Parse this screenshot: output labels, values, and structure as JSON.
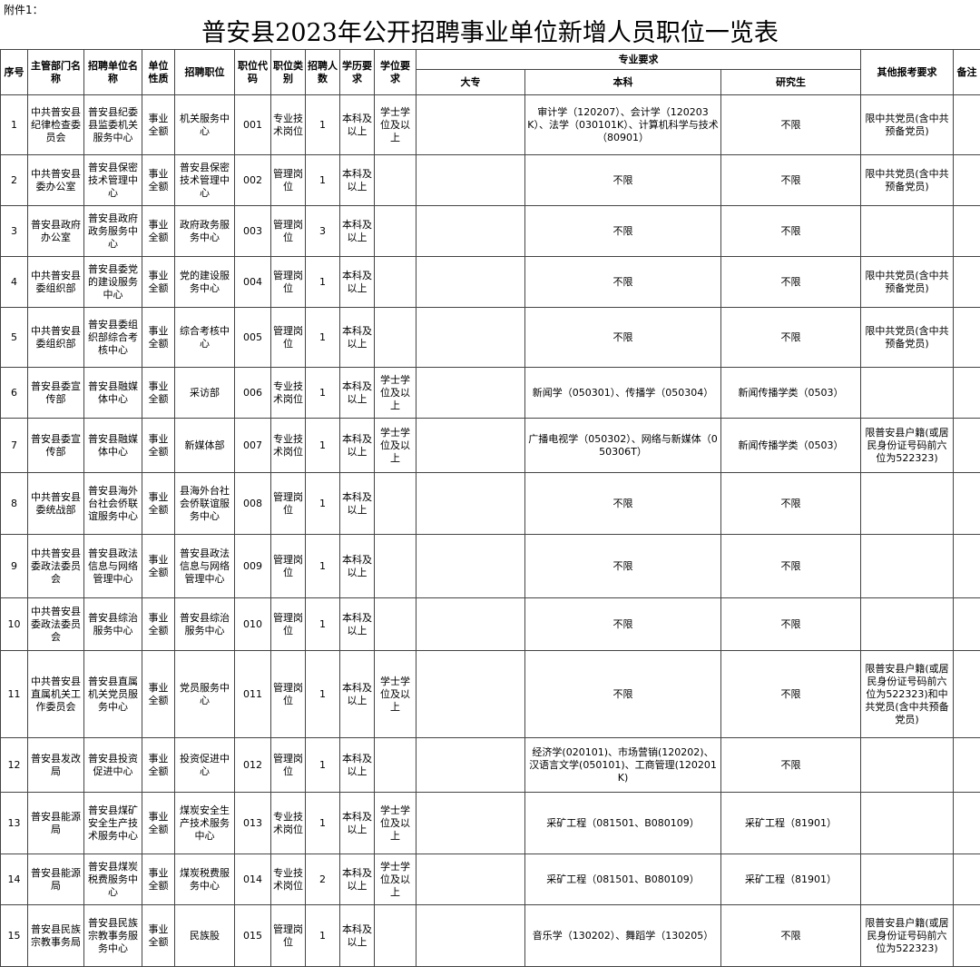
{
  "header": {
    "attachment": "附件1：",
    "title": "普安县2023年公开招聘事业单位新增人员职位一览表"
  },
  "table": {
    "headers": [
      "序号",
      "主管部门名称",
      "招聘单位名称",
      "单位性质",
      "招聘职位",
      "职位代码",
      "职位类别",
      "招聘人数",
      "学历要求",
      "学位要求",
      "专业要求",
      "其他报考要求",
      "备注"
    ],
    "subheaders": [
      "大专",
      "本科",
      "研究生"
    ],
    "rows": [
      [
        1,
        "中共普安县纪律检查委员会",
        "普安县纪委县监委机关服务中心",
        "事业全额",
        "机关服务中心",
        "001",
        "专业技术岗位",
        1,
        "本科及以上",
        "学士学位及以上",
        null,
        "审计学（120207）、会计学（120203K）、法学（030101K）、计算机科学与技术（80901）",
        "不限",
        "限中共党员(含中共预备党员)",
        null
      ],
      [
        2,
        "中共普安县委办公室",
        "普安县保密技术管理中心",
        "事业全额",
        "普安县保密技术管理中心",
        "002",
        "管理岗位",
        1,
        "本科及以上",
        null,
        null,
        "不限",
        "不限",
        "限中共党员(含中共预备党员)",
        null
      ],
      [
        3,
        "普安县政府办公室",
        "普安县政府政务服务中心",
        "事业全额",
        "政府政务服务中心",
        "003",
        "管理岗位",
        3,
        "本科及以上",
        null,
        null,
        "不限",
        "不限",
        null,
        null
      ],
      [
        4,
        "中共普安县委组织部",
        "普安县委党的建设服务中心",
        "事业全额",
        "党的建设服务中心",
        "004",
        "管理岗位",
        1,
        "本科及以上",
        null,
        null,
        "不限",
        "不限",
        "限中共党员(含中共预备党员)",
        null
      ],
      [
        5,
        "中共普安县委组织部",
        "普安县委组织部综合考核中心",
        "事业全额",
        "综合考核中心",
        "005",
        "管理岗位",
        1,
        "本科及以上",
        null,
        null,
        "不限",
        "不限",
        "限中共党员(含中共预备党员)",
        null
      ],
      [
        6,
        "普安县委宣传部",
        "普安县融媒体中心",
        "事业全额",
        "采访部",
        "006",
        "专业技术岗位",
        1,
        "本科及以上",
        "学士学位及以上",
        null,
        "新闻学（050301）、传播学（050304）",
        "新闻传播学类（0503）",
        null,
        null
      ],
      [
        7,
        "普安县委宣传部",
        "普安县融媒体中心",
        "事业全额",
        "新媒体部",
        "007",
        "专业技术岗位",
        1,
        "本科及以上",
        "学士学位及以上",
        null,
        "广播电视学（050302）、网络与新媒体（050306T）",
        "新闻传播学类（0503）",
        "限普安县户籍(或居民身份证号码前六位为522323)",
        null
      ],
      [
        8,
        "中共普安县委统战部",
        "普安县海外台社会侨联谊服务中心",
        "事业全额",
        "县海外台社会侨联谊服务中心",
        "008",
        "管理岗位",
        1,
        "本科及以上",
        null,
        null,
        "不限",
        "不限",
        null,
        null
      ],
      [
        9,
        "中共普安县委政法委员会",
        "普安县政法信息与网络管理中心",
        "事业全额",
        "普安县政法信息与网络管理中心",
        "009",
        "管理岗位",
        1,
        "本科及以上",
        null,
        null,
        "不限",
        "不限",
        null,
        null
      ],
      [
        10,
        "中共普安县委政法委员会",
        "普安县综治服务中心",
        "事业全额",
        "普安县综治服务中心",
        "010",
        "管理岗位",
        1,
        "本科及以上",
        null,
        null,
        "不限",
        "不限",
        null,
        null
      ],
      [
        11,
        "中共普安县直属机关工作委员会",
        "普安县直属机关党员服务中心",
        "事业全额",
        "党员服务中心",
        "011",
        "管理岗位",
        1,
        "本科及以上",
        "学士学位及以上",
        null,
        "不限",
        "不限",
        "限普安县户籍(或居民身份证号码前六位为522323)和中共党员(含中共预备党员)",
        null
      ],
      [
        12,
        "普安县发改局",
        "普安县投资促进中心",
        "事业全额",
        "投资促进中心",
        "012",
        "管理岗位",
        1,
        "本科及以上",
        null,
        null,
        "经济学(020101)、市场营销(120202)、汉语言文学(050101)、工商管理(120201K)",
        "不限",
        null,
        null
      ],
      [
        13,
        "普安县能源局",
        "普安县煤矿安全生产技术服务中心",
        "事业全额",
        "煤炭安全生产技术服务中心",
        "013",
        "专业技术岗位",
        1,
        "本科及以上",
        "学士学位及以上",
        null,
        "采矿工程（081501、B080109）",
        "采矿工程（81901）",
        null,
        null
      ],
      [
        14,
        "普安县能源局",
        "普安县煤炭税费服务中心",
        "事业全额",
        "煤炭税费服务中心",
        "014",
        "专业技术岗位",
        2,
        "本科及以上",
        "学士学位及以上",
        null,
        "采矿工程（081501、B080109）",
        "采矿工程（81901）",
        null,
        null
      ],
      [
        15,
        "普安县民族宗教事务局",
        "普安县民族宗教事务服务中心",
        "事业全额",
        "民族股",
        "015",
        "管理岗位",
        1,
        "本科及以上",
        null,
        null,
        "音乐学（130202）、舞蹈学（130205）",
        "不限",
        "限普安县户籍(或居民身份证号码前六位为522323)",
        null
      ]
    ]
  }
}
